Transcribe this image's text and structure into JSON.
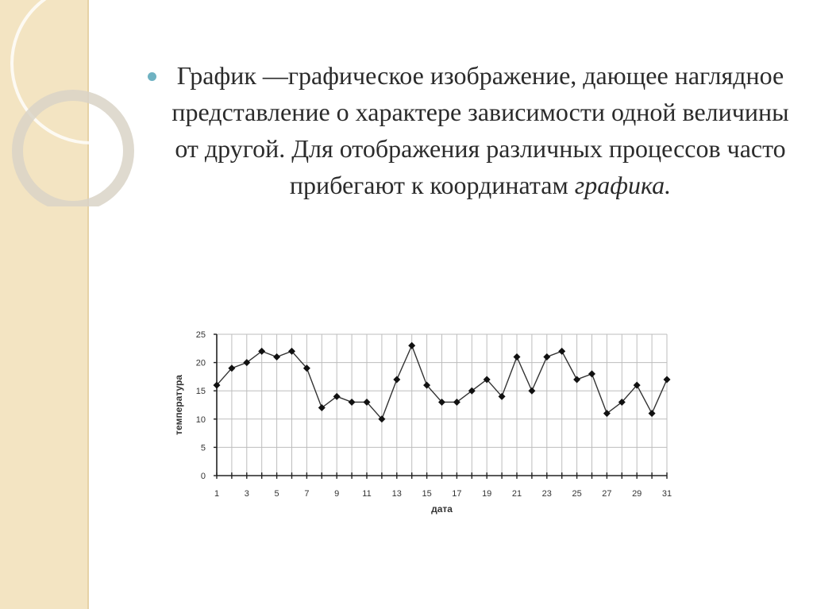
{
  "slide": {
    "text_main": "График —графическое изображение, дающее наглядное представление о характере зависимости одной величины от другой. Для отображения различных процессов часто прибегают к координатам ",
    "text_italic": "графика.",
    "bullet_color": "#6fb2c2",
    "panel_color": "#f3e4c2"
  },
  "chart_data": {
    "type": "line",
    "xlabel": "дата",
    "ylabel": "температура",
    "x": [
      1,
      2,
      3,
      4,
      5,
      6,
      7,
      8,
      9,
      10,
      11,
      12,
      13,
      14,
      15,
      16,
      17,
      18,
      19,
      20,
      21,
      22,
      23,
      24,
      25,
      26,
      27,
      28,
      29,
      30,
      31
    ],
    "values": [
      16,
      19,
      20,
      22,
      21,
      22,
      19,
      12,
      14,
      13,
      13,
      10,
      17,
      23,
      16,
      13,
      13,
      15,
      17,
      14,
      21,
      15,
      21,
      22,
      17,
      18,
      11,
      13,
      16,
      11,
      17
    ],
    "xticks": [
      1,
      3,
      5,
      7,
      9,
      11,
      13,
      15,
      17,
      19,
      21,
      23,
      25,
      27,
      29,
      31
    ],
    "yticks": [
      0,
      5,
      10,
      15,
      20,
      25
    ],
    "xlim": [
      1,
      31
    ],
    "ylim": [
      0,
      25
    ],
    "grid": true
  }
}
